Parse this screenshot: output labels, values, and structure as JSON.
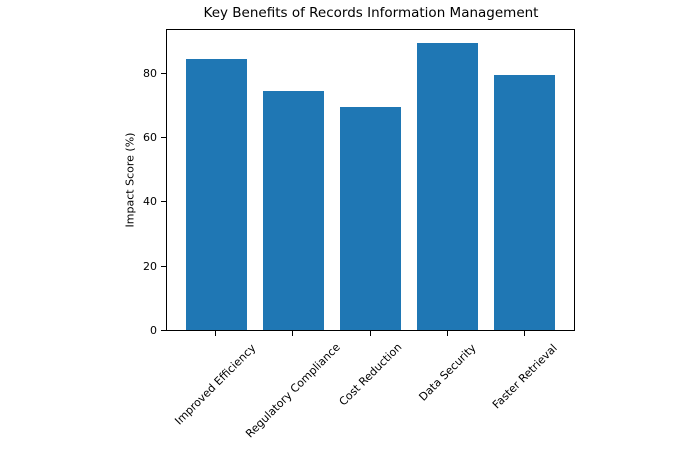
{
  "chart_data": {
    "type": "bar",
    "title": "Key Benefits of Records Information Management",
    "xlabel": "",
    "ylabel": "Impact Score (%)",
    "categories": [
      "Improved Efficiency",
      "Regulatory Compliance",
      "Cost Reduction",
      "Data Security",
      "Faster Retrieval"
    ],
    "values": [
      85,
      75,
      70,
      90,
      80
    ],
    "yticks": [
      0,
      20,
      40,
      60,
      80
    ],
    "ylim": [
      0,
      94
    ],
    "x_tick_rotation_deg": 45,
    "grid": false,
    "legend_position": "none",
    "colors": {
      "bar": "#1f77b4",
      "spine": "#000000",
      "text": "#000000",
      "background": "#ffffff"
    }
  }
}
